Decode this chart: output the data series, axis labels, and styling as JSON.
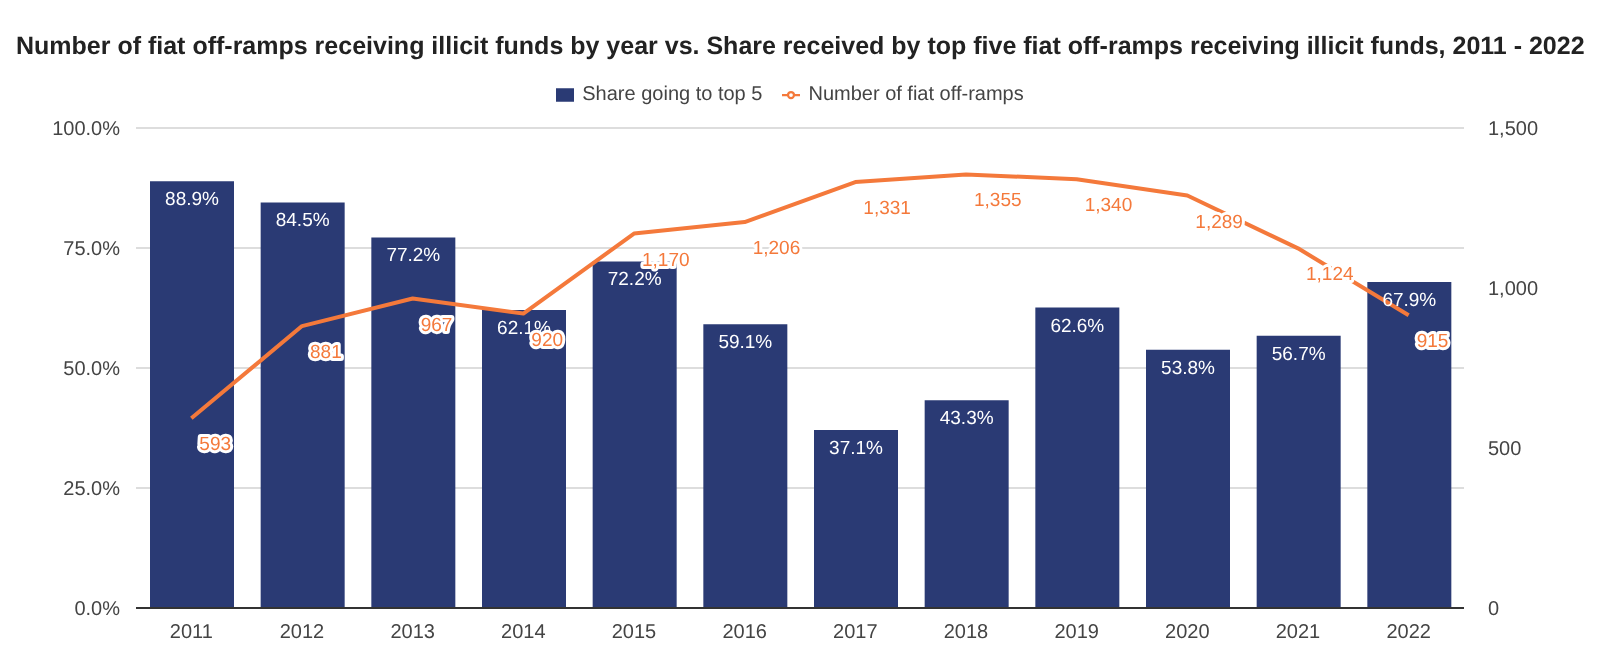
{
  "chart_data": {
    "type": "bar",
    "title": "Number of fiat off-ramps receiving illicit funds by year vs. Share received by top five fiat off-ramps receiving illicit funds, 2011 - 2022",
    "categories": [
      "2011",
      "2012",
      "2013",
      "2014",
      "2015",
      "2016",
      "2017",
      "2018",
      "2019",
      "2020",
      "2021",
      "2022"
    ],
    "series": [
      {
        "name": "Share going to top 5",
        "color": "#2a3a74",
        "values": [
          88.9,
          84.5,
          77.2,
          62.1,
          72.2,
          59.1,
          37.1,
          43.3,
          62.6,
          53.8,
          56.7,
          67.9
        ],
        "value_labels": [
          "88.9%",
          "84.5%",
          "77.2%",
          "62.1%",
          "72.2%",
          "59.1%",
          "37.1%",
          "43.3%",
          "62.6%",
          "53.8%",
          "56.7%",
          "67.9%"
        ]
      },
      {
        "name": "Number of fiat off-ramps",
        "type": "line",
        "axis": "y2",
        "color": "#f4793b",
        "values": [
          593,
          881,
          967,
          920,
          1170,
          1206,
          1331,
          1355,
          1340,
          1289,
          1124,
          915
        ],
        "value_labels": [
          "593",
          "881",
          "967",
          "920",
          "1,170",
          "1,206",
          "1,331",
          "1,355",
          "1,340",
          "1,289",
          "1,124",
          "915"
        ]
      }
    ],
    "ylim": [
      0,
      100
    ],
    "yticks": [
      {
        "value": 0,
        "label": "0.0%"
      },
      {
        "value": 25,
        "label": "25.0%"
      },
      {
        "value": 50,
        "label": "50.0%"
      },
      {
        "value": 75,
        "label": "75.0%"
      },
      {
        "value": 100,
        "label": "100.0%"
      }
    ],
    "y2lim": [
      0,
      1500
    ],
    "y2ticks": [
      0,
      500,
      {
        "value": 1000,
        "label": "1,000"
      },
      {
        "value": 1500,
        "label": "1,500"
      }
    ],
    "grid": "y",
    "legend": "top",
    "marker": "none"
  }
}
